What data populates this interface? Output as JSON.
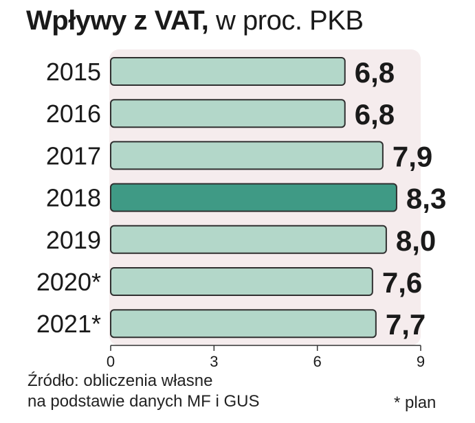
{
  "header": {
    "title_bold": "Wpływy z VAT,",
    "title_rest": "w proc. PKB"
  },
  "chart_data": {
    "type": "bar",
    "orientation": "horizontal",
    "categories": [
      "2015",
      "2016",
      "2017",
      "2018",
      "2019",
      "2020*",
      "2021*"
    ],
    "values": [
      6.8,
      6.8,
      7.9,
      8.3,
      8.0,
      7.6,
      7.7
    ],
    "value_labels": [
      "6,8",
      "6,8",
      "7,9",
      "8,3",
      "8,0",
      "7,6",
      "7,7"
    ],
    "highlight_index": 3,
    "xlim": [
      0,
      9
    ],
    "xticks": [
      "0",
      "3",
      "6",
      "9"
    ],
    "colors": {
      "bar": "#b3d7c9",
      "bar_highlight": "#3f9a85",
      "bar_border": "#2f2f2f",
      "plot_background": "#f5eced"
    },
    "grid": false,
    "legend": "none"
  },
  "footer": {
    "source_line1": "Źródło: obliczenia własne",
    "source_line2": "na podstawie danych MF i GUS",
    "note": "* plan"
  }
}
